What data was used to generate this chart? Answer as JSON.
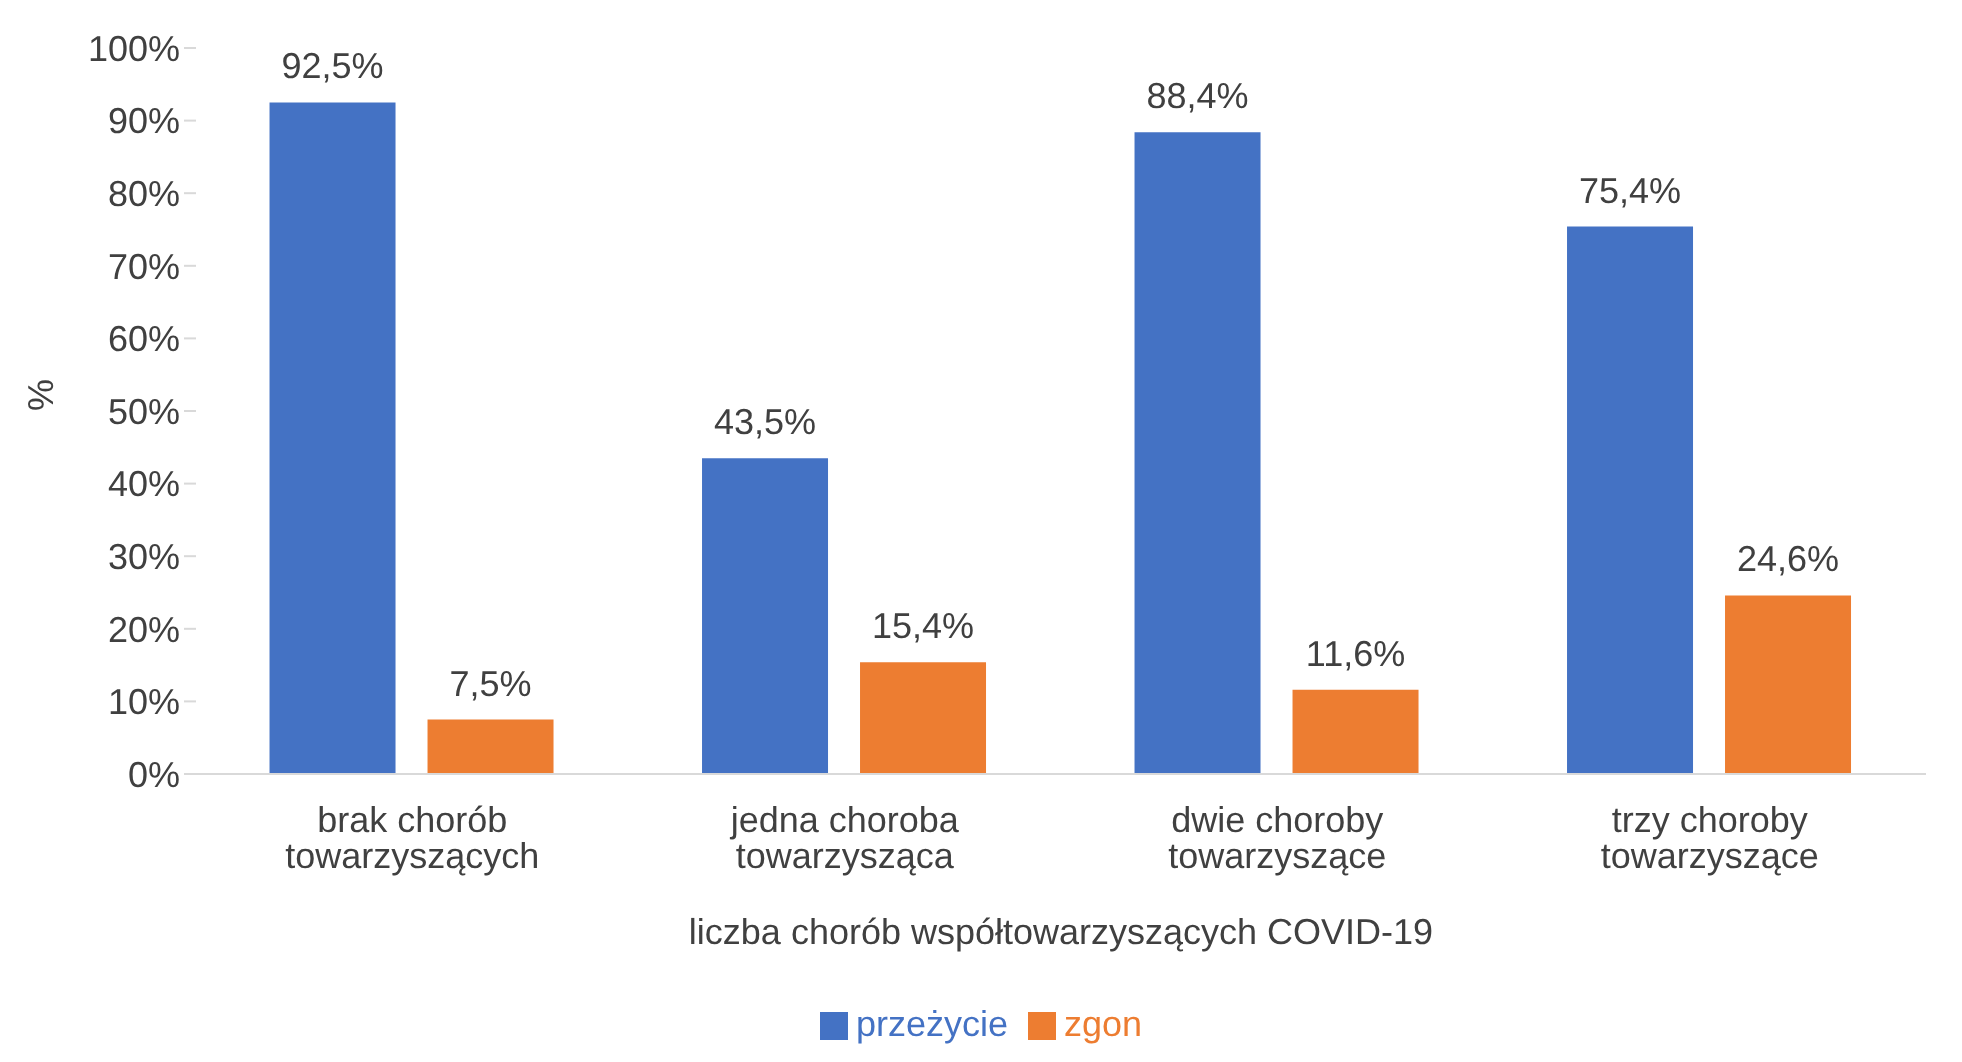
{
  "chart_data": {
    "type": "bar",
    "xlabel": "liczba chorób współtowarzyszących COVID-19",
    "ylabel": "%",
    "categories": [
      "brak chorób towarzyszących",
      "jedna choroba towarzysząca",
      "dwie choroby towarzyszące",
      "trzy choroby towarzyszące"
    ],
    "series": [
      {
        "name": "przeżycie",
        "color": "#4472c4",
        "values": [
          92.5,
          43.5,
          88.4,
          75.4
        ],
        "value_labels": [
          "92,5%",
          "43,5%",
          "88,4%",
          "75,4%"
        ]
      },
      {
        "name": "zgon",
        "color": "#ed7d31",
        "values": [
          7.5,
          15.4,
          11.6,
          24.6
        ],
        "value_labels": [
          "7,5%",
          "15,4%",
          "11,6%",
          "24,6%"
        ]
      }
    ],
    "ylim": [
      0,
      100
    ],
    "yticks": [
      {
        "value": 0,
        "label": "0%"
      },
      {
        "value": 10,
        "label": "10%"
      },
      {
        "value": 20,
        "label": "20%"
      },
      {
        "value": 30,
        "label": "30%"
      },
      {
        "value": 40,
        "label": "40%"
      },
      {
        "value": 50,
        "label": "50%"
      },
      {
        "value": 60,
        "label": "60%"
      },
      {
        "value": 70,
        "label": "70%"
      },
      {
        "value": 80,
        "label": "80%"
      },
      {
        "value": 90,
        "label": "90%"
      },
      {
        "value": 100,
        "label": "100%"
      }
    ],
    "grid": false,
    "legend": "bottom"
  }
}
